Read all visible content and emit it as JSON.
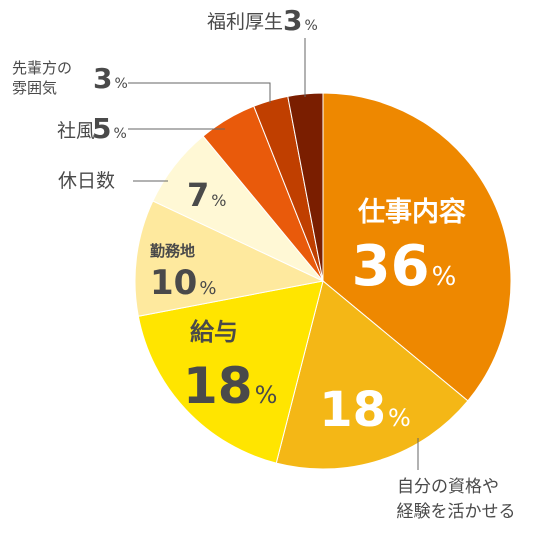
{
  "chart_data": {
    "type": "pie",
    "slices": [
      {
        "label": "仕事内容",
        "value": 36,
        "color": "#ee8800"
      },
      {
        "label": "自分の資格や経験を活かせる",
        "label_lines": [
          "自分の資格や",
          "経験を活かせる"
        ],
        "value": 18,
        "color": "#f4b716"
      },
      {
        "label": "給与",
        "value": 18,
        "color": "#ffe500"
      },
      {
        "label": "勤務地",
        "value": 10,
        "color": "#fee99e"
      },
      {
        "label": "休日数",
        "value": 7,
        "color": "#fff8d5"
      },
      {
        "label": "社風",
        "value": 5,
        "color": "#e95a0b"
      },
      {
        "label": "先輩方の雰囲気",
        "label_lines": [
          "先輩方の",
          "雰囲気"
        ],
        "value": 3,
        "color": "#c03f00"
      },
      {
        "label": "福利厚生",
        "value": 3,
        "color": "#7a1e00"
      }
    ],
    "unit": "%",
    "legend": "none"
  }
}
